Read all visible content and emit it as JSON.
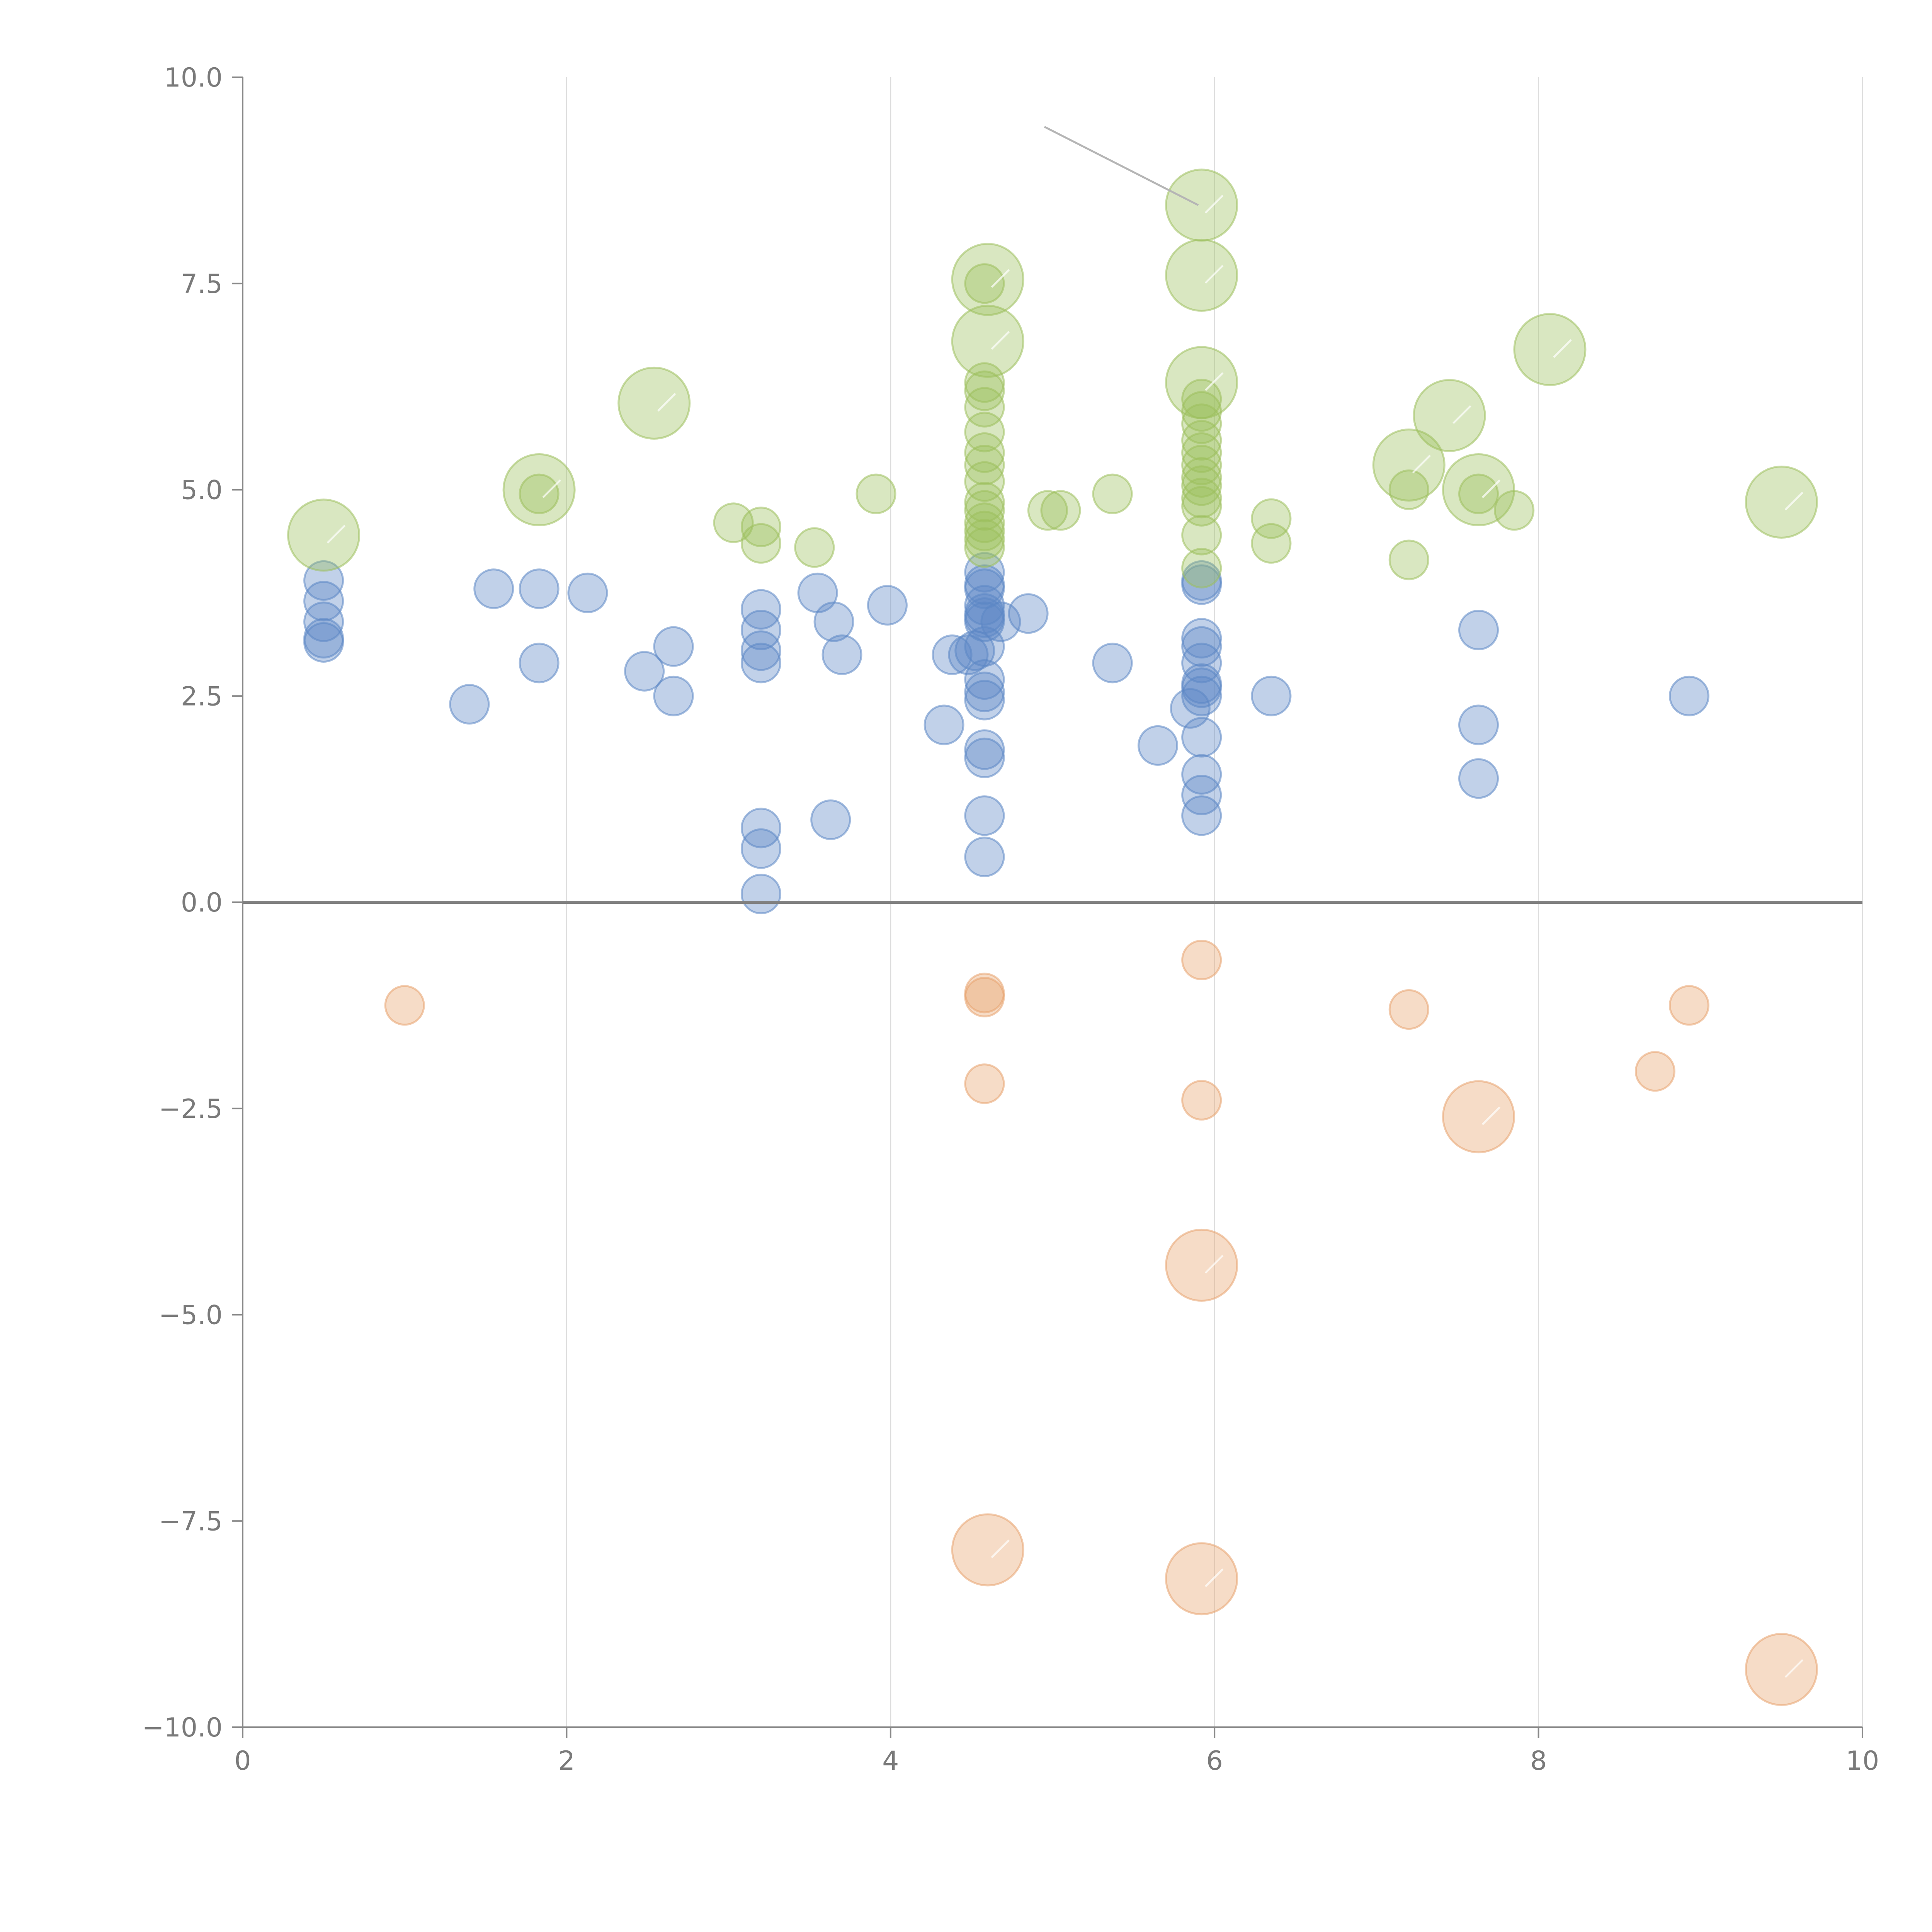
{
  "chart_data": {
    "type": "scatter",
    "title": "",
    "xlabel": "",
    "ylabel": "",
    "xlim": [
      0,
      10
    ],
    "ylim": [
      -10,
      10
    ],
    "grid": "vertical",
    "x_ticks": [
      "0",
      "2",
      "4",
      "6",
      "8",
      "10"
    ],
    "y_ticks": [
      "10.0",
      "7.5",
      "5.0",
      "2.5",
      "0.0",
      "−2.5",
      "−5.0",
      "−7.5",
      "−10.0"
    ],
    "colors": {
      "blue": "#5b86c5",
      "green": "#9cbf5c",
      "orange": "#e8a36d"
    },
    "series": [
      {
        "name": "blue",
        "color": "#5b86c5",
        "points": [
          [
            0.5,
            3.9,
            "s"
          ],
          [
            0.5,
            3.65,
            "s"
          ],
          [
            0.5,
            3.4,
            "s"
          ],
          [
            0.5,
            3.2,
            "s"
          ],
          [
            0.5,
            3.15,
            "s"
          ],
          [
            1.4,
            2.4,
            "s"
          ],
          [
            1.55,
            3.8,
            "s"
          ],
          [
            1.83,
            3.8,
            "s"
          ],
          [
            1.83,
            2.9,
            "s"
          ],
          [
            2.13,
            3.75,
            "s"
          ],
          [
            2.48,
            2.8,
            "s"
          ],
          [
            2.66,
            3.1,
            "s"
          ],
          [
            2.66,
            2.5,
            "s"
          ],
          [
            3.2,
            3.55,
            "s"
          ],
          [
            3.2,
            3.3,
            "s"
          ],
          [
            3.2,
            3.05,
            "s"
          ],
          [
            3.2,
            2.9,
            "s"
          ],
          [
            3.2,
            0.9,
            "s"
          ],
          [
            3.2,
            0.65,
            "s"
          ],
          [
            3.2,
            0.1,
            "s"
          ],
          [
            3.55,
            3.75,
            "s"
          ],
          [
            3.65,
            3.4,
            "s"
          ],
          [
            3.7,
            3.0,
            "s"
          ],
          [
            3.63,
            1.0,
            "s"
          ],
          [
            3.98,
            3.6,
            "s"
          ],
          [
            4.33,
            2.15,
            "s"
          ],
          [
            4.38,
            3.0,
            "s"
          ],
          [
            4.48,
            3.0,
            "s"
          ],
          [
            4.52,
            3.05,
            "s"
          ],
          [
            4.68,
            3.4,
            "s"
          ],
          [
            4.85,
            3.5,
            "s"
          ],
          [
            4.58,
            4.0,
            "s"
          ],
          [
            4.58,
            3.85,
            "s"
          ],
          [
            4.58,
            3.8,
            "s"
          ],
          [
            4.58,
            3.6,
            "s"
          ],
          [
            4.58,
            3.5,
            "s"
          ],
          [
            4.58,
            3.45,
            "s"
          ],
          [
            4.58,
            3.4,
            "s"
          ],
          [
            4.58,
            3.1,
            "s"
          ],
          [
            4.58,
            2.7,
            "s"
          ],
          [
            4.58,
            2.55,
            "s"
          ],
          [
            4.58,
            2.45,
            "s"
          ],
          [
            4.58,
            1.85,
            "s"
          ],
          [
            4.58,
            1.75,
            "s"
          ],
          [
            4.58,
            1.05,
            "s"
          ],
          [
            4.58,
            0.55,
            "s"
          ],
          [
            5.37,
            2.9,
            "s"
          ],
          [
            5.65,
            1.9,
            "s"
          ],
          [
            5.85,
            2.35,
            "s"
          ],
          [
            5.92,
            3.9,
            "s"
          ],
          [
            5.92,
            3.85,
            "s"
          ],
          [
            5.92,
            3.2,
            "s"
          ],
          [
            5.92,
            3.1,
            "s"
          ],
          [
            5.92,
            2.9,
            "s"
          ],
          [
            5.92,
            2.65,
            "s"
          ],
          [
            5.92,
            2.6,
            "s"
          ],
          [
            5.92,
            2.5,
            "s"
          ],
          [
            5.92,
            2.0,
            "s"
          ],
          [
            5.92,
            1.55,
            "s"
          ],
          [
            5.92,
            1.3,
            "s"
          ],
          [
            5.92,
            1.05,
            "s"
          ],
          [
            6.35,
            2.5,
            "s"
          ],
          [
            7.63,
            3.3,
            "s"
          ],
          [
            7.63,
            2.15,
            "s"
          ],
          [
            7.63,
            1.5,
            "s"
          ],
          [
            8.93,
            2.5,
            "s"
          ]
        ]
      },
      {
        "name": "green",
        "color": "#9cbf5c",
        "points": [
          [
            0.5,
            4.45,
            "l"
          ],
          [
            1.83,
            5.0,
            "l"
          ],
          [
            1.83,
            4.95,
            "s"
          ],
          [
            2.54,
            6.05,
            "l"
          ],
          [
            3.03,
            4.6,
            "s"
          ],
          [
            3.2,
            4.55,
            "s"
          ],
          [
            3.2,
            4.35,
            "s"
          ],
          [
            3.53,
            4.3,
            "s"
          ],
          [
            3.91,
            4.95,
            "s"
          ],
          [
            4.6,
            7.55,
            "l"
          ],
          [
            4.6,
            6.8,
            "l"
          ],
          [
            4.58,
            7.5,
            "s"
          ],
          [
            4.58,
            6.3,
            "s"
          ],
          [
            4.58,
            6.2,
            "s"
          ],
          [
            4.58,
            6.0,
            "s"
          ],
          [
            4.58,
            5.7,
            "s"
          ],
          [
            4.58,
            5.45,
            "s"
          ],
          [
            4.58,
            5.3,
            "s"
          ],
          [
            4.58,
            5.1,
            "s"
          ],
          [
            4.58,
            4.85,
            "s"
          ],
          [
            4.58,
            4.75,
            "s"
          ],
          [
            4.58,
            4.6,
            "s"
          ],
          [
            4.58,
            4.5,
            "s"
          ],
          [
            4.58,
            4.4,
            "s"
          ],
          [
            4.58,
            4.3,
            "s"
          ],
          [
            4.97,
            4.75,
            "s"
          ],
          [
            5.05,
            4.75,
            "s"
          ],
          [
            5.37,
            4.95,
            "s"
          ],
          [
            5.92,
            8.45,
            "l"
          ],
          [
            5.92,
            7.6,
            "l"
          ],
          [
            5.92,
            6.3,
            "l"
          ],
          [
            5.92,
            6.1,
            "s"
          ],
          [
            5.92,
            5.95,
            "s"
          ],
          [
            5.92,
            5.8,
            "s"
          ],
          [
            5.92,
            5.6,
            "s"
          ],
          [
            5.92,
            5.45,
            "s"
          ],
          [
            5.92,
            5.3,
            "s"
          ],
          [
            5.92,
            5.15,
            "s"
          ],
          [
            5.92,
            5.05,
            "s"
          ],
          [
            5.92,
            4.9,
            "s"
          ],
          [
            5.92,
            4.8,
            "s"
          ],
          [
            5.92,
            4.45,
            "s"
          ],
          [
            5.92,
            4.05,
            "s"
          ],
          [
            6.35,
            4.65,
            "s"
          ],
          [
            6.35,
            4.35,
            "s"
          ],
          [
            7.2,
            5.3,
            "l"
          ],
          [
            7.2,
            5.0,
            "s"
          ],
          [
            7.2,
            4.15,
            "s"
          ],
          [
            7.45,
            5.9,
            "l"
          ],
          [
            7.63,
            5.0,
            "l"
          ],
          [
            7.63,
            4.95,
            "s"
          ],
          [
            7.85,
            4.75,
            "s"
          ],
          [
            8.07,
            6.7,
            "l"
          ],
          [
            9.5,
            4.85,
            "l"
          ]
        ]
      },
      {
        "name": "orange",
        "color": "#e8a36d",
        "points": [
          [
            1.0,
            -1.25,
            "s"
          ],
          [
            4.58,
            -1.1,
            "s"
          ],
          [
            4.58,
            -1.15,
            "s"
          ],
          [
            4.58,
            -2.2,
            "s"
          ],
          [
            5.92,
            -0.7,
            "s"
          ],
          [
            5.92,
            -2.4,
            "s"
          ],
          [
            5.92,
            -4.4,
            "l"
          ],
          [
            5.92,
            -8.2,
            "l"
          ],
          [
            4.6,
            -7.85,
            "l"
          ],
          [
            7.2,
            -1.3,
            "s"
          ],
          [
            7.63,
            -2.6,
            "l"
          ],
          [
            8.72,
            -2.05,
            "s"
          ],
          [
            8.93,
            -1.25,
            "s"
          ],
          [
            9.5,
            -9.3,
            "l"
          ]
        ]
      }
    ],
    "annotation_line": {
      "from": [
        4.95,
        9.4
      ],
      "to": [
        5.9,
        8.45
      ]
    }
  }
}
